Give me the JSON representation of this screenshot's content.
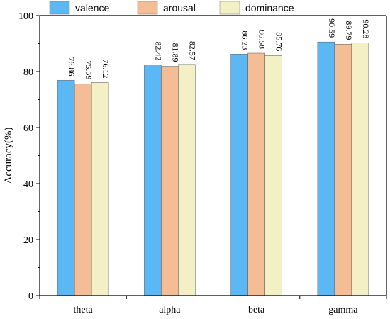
{
  "chart_data": {
    "type": "bar",
    "categories": [
      "theta",
      "alpha",
      "beta",
      "gamma"
    ],
    "series": [
      {
        "name": "valence",
        "values": [
          76.86,
          82.42,
          86.23,
          90.59
        ]
      },
      {
        "name": "arousal",
        "values": [
          75.59,
          81.89,
          86.58,
          89.79
        ]
      },
      {
        "name": "dominance",
        "values": [
          76.12,
          82.57,
          85.76,
          90.28
        ]
      }
    ],
    "data_labels": [
      [
        "76.86",
        "82.42",
        "86.23",
        "90.59"
      ],
      [
        "75.59",
        "81.89",
        "86.58",
        "89.79"
      ],
      [
        "76.12",
        "82.57",
        "85.76",
        "90.28"
      ]
    ],
    "title": "",
    "xlabel": "",
    "ylabel": "Accuracy(%)",
    "ylim": [
      0,
      100
    ],
    "yticks": [
      "0",
      "20",
      "40",
      "60",
      "80",
      "100"
    ],
    "grid": false,
    "legend_position": "top"
  },
  "colors": {
    "series": [
      "#5bb8f5",
      "#f5bd95",
      "#f2f0c4"
    ]
  }
}
